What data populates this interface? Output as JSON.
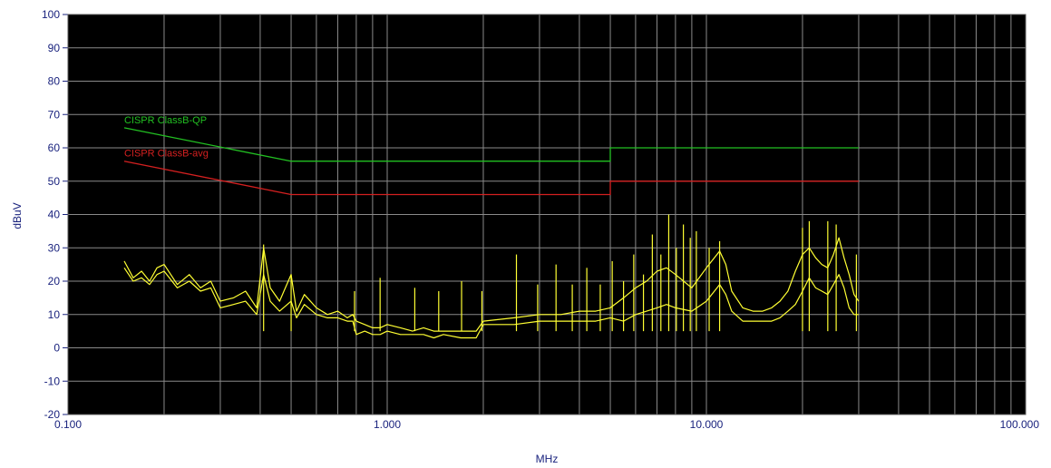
{
  "chart_data": {
    "type": "line",
    "xlabel": "MHz",
    "ylabel": "dBuV",
    "xscale": "log",
    "xlim": [
      0.1,
      100
    ],
    "ylim": [
      -20,
      100
    ],
    "y_ticks": [
      "100",
      "90",
      "80",
      "70",
      "60",
      "50",
      "40",
      "30",
      "20",
      "10",
      "0",
      "-10",
      "-20"
    ],
    "y_tick_values": [
      100,
      90,
      80,
      70,
      60,
      50,
      40,
      30,
      20,
      10,
      0,
      -10,
      -20
    ],
    "x_ticks": [
      "0.100",
      "1.000",
      "10.000",
      "100.000"
    ],
    "x_tick_values": [
      0.1,
      1,
      10,
      100
    ],
    "grid": true,
    "background_color": "#000000",
    "grid_color": "#8a8a8a",
    "series": [
      {
        "name": "CISPR ClassB-QP",
        "color": "#22c022",
        "x": [
          0.15,
          0.5,
          5,
          5,
          30
        ],
        "y": [
          66,
          56,
          56,
          60,
          60
        ]
      },
      {
        "name": "CISPR ClassB-avg",
        "color": "#d42020",
        "x": [
          0.15,
          0.5,
          5,
          5,
          30
        ],
        "y": [
          56,
          46,
          46,
          50,
          50
        ]
      },
      {
        "name": "",
        "color": "#ffff33",
        "x": [
          0.15,
          0.16,
          0.17,
          0.18,
          0.19,
          0.2,
          0.22,
          0.24,
          0.26,
          0.28,
          0.3,
          0.33,
          0.36,
          0.39,
          0.41,
          0.43,
          0.46,
          0.5,
          0.52,
          0.55,
          0.6,
          0.65,
          0.7,
          0.75,
          0.78,
          0.8,
          0.85,
          0.9,
          0.95,
          1.0,
          1.1,
          1.2,
          1.3,
          1.4,
          1.5,
          1.7,
          1.9,
          2.0,
          2.5,
          3.0,
          3.5,
          4.0,
          4.5,
          5.0,
          5.5,
          6.0,
          6.5,
          7.0,
          7.5,
          8.0,
          9.0,
          10.0,
          11.0,
          11.5,
          12.0,
          13.0,
          14.0,
          15.0,
          16.0,
          17.0,
          18.0,
          19.0,
          20.0,
          21.0,
          22.0,
          23.0,
          24.0,
          25.0,
          26.0,
          27.0,
          28.0,
          29.0,
          30.0
        ],
        "y": [
          26,
          21,
          23,
          20,
          24,
          25,
          19,
          22,
          18,
          20,
          14,
          15,
          17,
          12,
          30,
          18,
          14,
          22,
          11,
          16,
          12,
          10,
          11,
          9,
          10,
          8,
          7,
          6,
          6,
          7,
          6,
          5,
          6,
          5,
          5,
          5,
          5,
          8,
          9,
          10,
          10,
          11,
          11,
          12,
          15,
          18,
          20,
          23,
          24,
          22,
          18,
          24,
          29,
          25,
          17,
          12,
          11,
          11,
          12,
          14,
          17,
          23,
          28,
          30,
          27,
          25,
          24,
          28,
          33,
          27,
          22,
          16,
          14
        ]
      },
      {
        "name": "",
        "color": "#ffff33",
        "x": [
          0.15,
          0.16,
          0.17,
          0.18,
          0.19,
          0.2,
          0.22,
          0.24,
          0.26,
          0.28,
          0.3,
          0.33,
          0.36,
          0.39,
          0.41,
          0.43,
          0.46,
          0.5,
          0.52,
          0.55,
          0.6,
          0.65,
          0.7,
          0.75,
          0.78,
          0.8,
          0.85,
          0.9,
          0.95,
          1.0,
          1.1,
          1.2,
          1.3,
          1.4,
          1.5,
          1.7,
          1.9,
          2.0,
          2.5,
          3.0,
          3.5,
          4.0,
          4.5,
          5.0,
          5.5,
          6.0,
          6.5,
          7.0,
          7.5,
          8.0,
          9.0,
          10.0,
          11.0,
          11.5,
          12.0,
          13.0,
          14.0,
          15.0,
          16.0,
          17.0,
          18.0,
          19.0,
          20.0,
          21.0,
          22.0,
          23.0,
          24.0,
          25.0,
          26.0,
          27.0,
          28.0,
          29.0,
          30.0
        ],
        "y": [
          24,
          20,
          21,
          19,
          22,
          23,
          18,
          20,
          17,
          18,
          12,
          13,
          14,
          10,
          22,
          14,
          11,
          14,
          9,
          13,
          10,
          9,
          9,
          8,
          8,
          4,
          5,
          4,
          4,
          5,
          4,
          4,
          4,
          3,
          4,
          3,
          3,
          7,
          7,
          8,
          8,
          8,
          8,
          9,
          8,
          10,
          11,
          12,
          13,
          12,
          11,
          14,
          19,
          16,
          11,
          8,
          8,
          8,
          8,
          9,
          11,
          13,
          17,
          21,
          18,
          17,
          16,
          19,
          22,
          18,
          12,
          10,
          10
        ]
      }
    ],
    "spikes": [
      {
        "x": 0.41,
        "y": 31
      },
      {
        "x": 0.5,
        "y": 22
      },
      {
        "x": 0.79,
        "y": 17
      },
      {
        "x": 0.95,
        "y": 21
      },
      {
        "x": 1.22,
        "y": 18
      },
      {
        "x": 1.45,
        "y": 17
      },
      {
        "x": 1.71,
        "y": 20
      },
      {
        "x": 1.98,
        "y": 17
      },
      {
        "x": 2.54,
        "y": 28
      },
      {
        "x": 2.96,
        "y": 19
      },
      {
        "x": 3.38,
        "y": 25
      },
      {
        "x": 3.8,
        "y": 19
      },
      {
        "x": 4.22,
        "y": 24
      },
      {
        "x": 4.65,
        "y": 19
      },
      {
        "x": 5.07,
        "y": 26
      },
      {
        "x": 5.5,
        "y": 20
      },
      {
        "x": 5.92,
        "y": 28
      },
      {
        "x": 6.35,
        "y": 22
      },
      {
        "x": 6.77,
        "y": 34
      },
      {
        "x": 7.2,
        "y": 28
      },
      {
        "x": 7.62,
        "y": 40
      },
      {
        "x": 8.05,
        "y": 30
      },
      {
        "x": 8.47,
        "y": 37
      },
      {
        "x": 8.9,
        "y": 33
      },
      {
        "x": 9.3,
        "y": 35
      },
      {
        "x": 10.2,
        "y": 30
      },
      {
        "x": 11.0,
        "y": 32
      },
      {
        "x": 20.0,
        "y": 36
      },
      {
        "x": 21.0,
        "y": 38
      },
      {
        "x": 24.0,
        "y": 38
      },
      {
        "x": 25.5,
        "y": 37
      },
      {
        "x": 29.5,
        "y": 28
      }
    ]
  }
}
